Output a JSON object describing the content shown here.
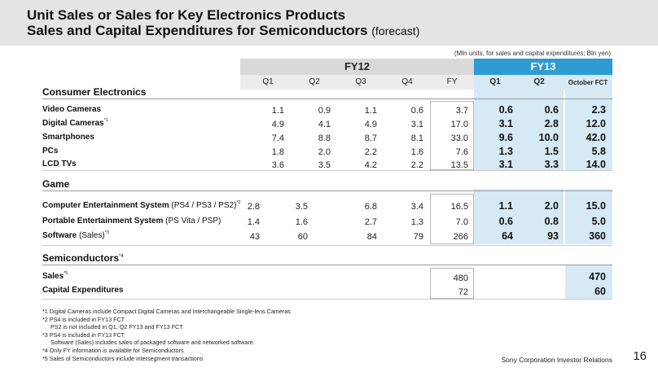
{
  "title_line1": "Unit Sales or Sales for Key Electronics Products",
  "title_line2": "Sales and Capital Expenditures for Semiconductors",
  "title_suffix": "(forecast)",
  "units_note": "(Mln units, for sales and capital expenditures;  Bln yen)",
  "headers": {
    "fy12": "FY12",
    "fy13": "FY13",
    "cols": [
      "Q1",
      "Q2",
      "Q3",
      "Q4",
      "FY",
      "Q1",
      "Q2",
      "October FCT"
    ]
  },
  "sections": {
    "consumer": "Consumer Electronics",
    "game": "Game",
    "semi": "Semiconductors",
    "semi_note": "*4"
  },
  "consumer_rows": [
    {
      "label": "Video Cameras",
      "note": "",
      "values": [
        "1.1",
        "0.9",
        "1.1",
        "0.6",
        "3.7",
        "0.6",
        "0.6",
        "2.3"
      ]
    },
    {
      "label": "Digital  Cameras",
      "note": "*1",
      "values": [
        "4.9",
        "4.1",
        "4.9",
        "3.1",
        "17.0",
        "3.1",
        "2.8",
        "12.0"
      ]
    },
    {
      "label": "Smartphones",
      "note": "",
      "values": [
        "7.4",
        "8.8",
        "8.7",
        "8.1",
        "33.0",
        "9.6",
        "10.0",
        "42.0"
      ]
    },
    {
      "label": "PCs",
      "note": "",
      "values": [
        "1.8",
        "2.0",
        "2.2",
        "1.6",
        "7.6",
        "1.3",
        "1.5",
        "5.8"
      ]
    },
    {
      "label": "LCD  TVs",
      "note": "",
      "values": [
        "3.6",
        "3.5",
        "4.2",
        "2.2",
        "13.5",
        "3.1",
        "3.3",
        "14.0"
      ]
    }
  ],
  "game_rows": [
    {
      "label": "Computer Entertainment  System",
      "detail": "(PS4 / PS3 / PS2)",
      "note": "*2",
      "values": [
        "2.8",
        "3.5",
        "6.8",
        "3.4",
        "16.5",
        "1.1",
        "2.0",
        "15.0"
      ]
    },
    {
      "label": "Portable Entertainment  System",
      "detail": "(PS Vita / PSP)",
      "note": "",
      "values": [
        "1.4",
        "1.6",
        "2.7",
        "1.3",
        "7.0",
        "0.6",
        "0.8",
        "5.0"
      ]
    },
    {
      "label": "Software",
      "detail": "(Sales)",
      "note": "*3",
      "values": [
        "43",
        "60",
        "84",
        "79",
        "266",
        "64",
        "93",
        "360"
      ]
    }
  ],
  "semi_rows": [
    {
      "label": "Sales",
      "note": "*5",
      "fy": "480",
      "fct": "470"
    },
    {
      "label": "Capital  Expenditures",
      "note": "",
      "fy": "72",
      "fct": "60"
    }
  ],
  "footnotes": [
    "*1 Digital Cameras include Compact Digital Cameras and Interchangeable Single-lens Cameras",
    "*2 PS4 is included in FY13 FCT",
    "     PS2 is not included in Q1, Q2 FY13 and FY13 FCT",
    "*3 PS4 is included in FY13 FCT",
    "     Software (Sales) includes sales of packaged software and networked software.",
    "*4 Only FY information is available for Semiconductors",
    "*5 Sales of Semiconductors include intersegment transactions"
  ],
  "footer_text": "Sony Corporation  Investor  Relations",
  "page_number": "16",
  "colors": {
    "fy13_band": "#2f9ad3",
    "fy13_fill": "#d6e9f5",
    "header_bg": "#e4e4e4"
  }
}
